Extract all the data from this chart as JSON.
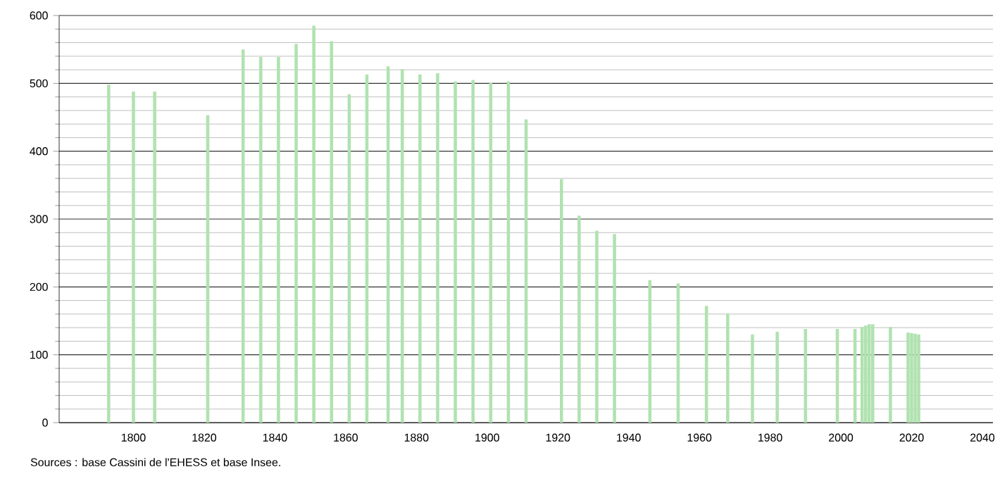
{
  "chart_data": {
    "type": "bar",
    "x": [
      1793,
      1800,
      1806,
      1821,
      1831,
      1836,
      1841,
      1846,
      1851,
      1856,
      1861,
      1866,
      1872,
      1876,
      1881,
      1886,
      1891,
      1896,
      1901,
      1906,
      1911,
      1921,
      1926,
      1931,
      1936,
      1946,
      1954,
      1962,
      1968,
      1975,
      1982,
      1990,
      1999,
      2004,
      2006,
      2007,
      2008,
      2009,
      2014,
      2019,
      2020,
      2021,
      2022
    ],
    "values": [
      498,
      488,
      488,
      453,
      550,
      539,
      539,
      558,
      585,
      562,
      484,
      513,
      525,
      521,
      513,
      515,
      503,
      505,
      501,
      503,
      447,
      359,
      305,
      283,
      278,
      210,
      205,
      172,
      161,
      130,
      134,
      138,
      138,
      138,
      141,
      143,
      145,
      145,
      141,
      133,
      132,
      131,
      130
    ],
    "color": "#b0e2b0",
    "xlim": [
      1779,
      2043
    ],
    "xticks": [
      1800,
      1820,
      1840,
      1860,
      1880,
      1900,
      1920,
      1940,
      1960,
      1980,
      2000,
      2020,
      2040
    ],
    "ylim": [
      0,
      600
    ],
    "yticks": [
      0,
      100,
      200,
      300,
      400,
      500,
      600
    ],
    "grid": "y",
    "annotations": [
      "Sources : base Cassini de l'EHESS et base Insee."
    ]
  }
}
